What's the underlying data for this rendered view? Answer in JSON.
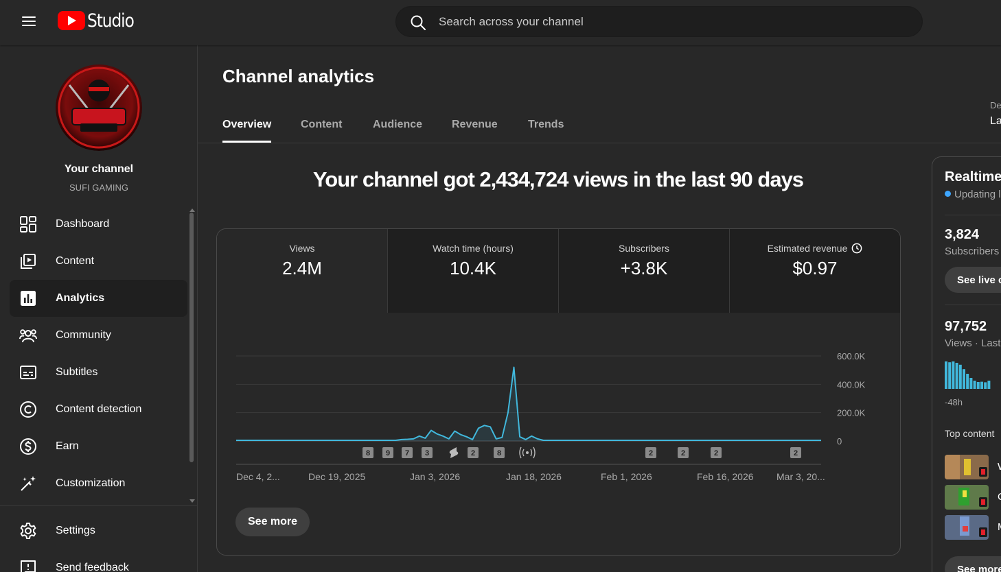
{
  "app": {
    "logo_text": "Studio",
    "search_placeholder": "Search across your channel"
  },
  "sidebar": {
    "channel_title": "Your channel",
    "channel_name": "SUFI GAMING",
    "items": [
      {
        "label": "Dashboard",
        "icon": "dashboard-icon"
      },
      {
        "label": "Content",
        "icon": "content-icon"
      },
      {
        "label": "Analytics",
        "icon": "analytics-icon",
        "active": true
      },
      {
        "label": "Community",
        "icon": "community-icon"
      },
      {
        "label": "Subtitles",
        "icon": "subtitles-icon"
      },
      {
        "label": "Content detection",
        "icon": "copyright-icon"
      },
      {
        "label": "Earn",
        "icon": "dollar-icon"
      },
      {
        "label": "Customization",
        "icon": "magic-wand-icon"
      }
    ],
    "bottom_items": [
      {
        "label": "Settings",
        "icon": "gear-icon"
      },
      {
        "label": "Send feedback",
        "icon": "feedback-icon"
      }
    ]
  },
  "main": {
    "title": "Channel analytics",
    "tabs": [
      "Overview",
      "Content",
      "Audience",
      "Revenue",
      "Trends"
    ],
    "date_range_label": "De",
    "date_range_value": "La",
    "headline": "Your channel got 2,434,724 views in the last 90 days",
    "metrics": [
      {
        "label": "Views",
        "value": "2.4M"
      },
      {
        "label": "Watch time (hours)",
        "value": "10.4K"
      },
      {
        "label": "Subscribers",
        "value": "+3.8K"
      },
      {
        "label": "Estimated revenue",
        "value": "$0.97"
      }
    ],
    "see_more": "See more"
  },
  "chart_data": {
    "type": "line",
    "series": [
      {
        "values": [
          5000,
          5000,
          5000,
          5000,
          5000,
          5000,
          5000,
          5000,
          5000,
          5000,
          5000,
          5000,
          5000,
          5000,
          5000,
          5000,
          5000,
          5000,
          5000,
          5000,
          5000,
          5000,
          5000,
          5000,
          5000,
          5000,
          5000,
          5000,
          10000,
          12000,
          15000,
          35000,
          20000,
          75000,
          50000,
          35000,
          15000,
          70000,
          45000,
          30000,
          10000,
          90000,
          110000,
          100000,
          15000,
          25000,
          200000,
          520000,
          30000,
          10000,
          35000,
          15000,
          5000,
          5000,
          5000,
          5000,
          5000,
          5000,
          5000,
          5000,
          5000,
          5000,
          5000,
          5000,
          5000,
          5000,
          5000,
          5000,
          5000,
          5000,
          5000,
          5000,
          5000,
          5000,
          5000,
          5000,
          5000,
          5000,
          5000,
          5000,
          5000,
          5000,
          5000,
          5000,
          5000,
          5000,
          5000,
          5000,
          5000,
          5000,
          5000,
          5000,
          5000,
          5000,
          5000,
          5000,
          5000,
          5000,
          5000,
          5000
        ]
      }
    ],
    "x_tick_labels": [
      "Dec 4, 2...",
      "Dec 19, 2025",
      "Jan 3, 2026",
      "Jan 18, 2026",
      "Feb 1, 2026",
      "Feb 16, 2026",
      "Mar 3, 20..."
    ],
    "y_ticks": [
      "600.0K",
      "400.0K",
      "200.0K",
      "0"
    ],
    "ylim": [
      0,
      600000
    ],
    "markers": [
      {
        "label": "8",
        "kind": "count"
      },
      {
        "label": "9",
        "kind": "count"
      },
      {
        "label": "7",
        "kind": "count"
      },
      {
        "label": "3",
        "kind": "count"
      },
      {
        "label": "",
        "kind": "shorts"
      },
      {
        "label": "2",
        "kind": "count"
      },
      {
        "label": "8",
        "kind": "count"
      },
      {
        "label": "",
        "kind": "live"
      },
      {
        "label": "2",
        "kind": "count"
      },
      {
        "label": "2",
        "kind": "count"
      },
      {
        "label": "2",
        "kind": "count"
      },
      {
        "label": "2",
        "kind": "count"
      }
    ]
  },
  "realtime": {
    "title": "Realtime",
    "status": "Updating li",
    "subscribers_value": "3,824",
    "subscribers_label": "Subscribers",
    "live_button": "See live c",
    "views_value": "97,752",
    "views_label": "Views · Last",
    "bars_axis_label": "-48h",
    "bar_levels": [
      1.0,
      0.97,
      1.0,
      0.95,
      0.88,
      0.72,
      0.55,
      0.4,
      0.3,
      0.25,
      0.26,
      0.24,
      0.3
    ],
    "top_content_label": "Top content",
    "top_content": [
      "W",
      "C",
      "M"
    ],
    "see_more": "See more"
  },
  "colors": {
    "accent": "#3ea6ff",
    "line": "#41b8dc",
    "brand": "#ff0000"
  }
}
